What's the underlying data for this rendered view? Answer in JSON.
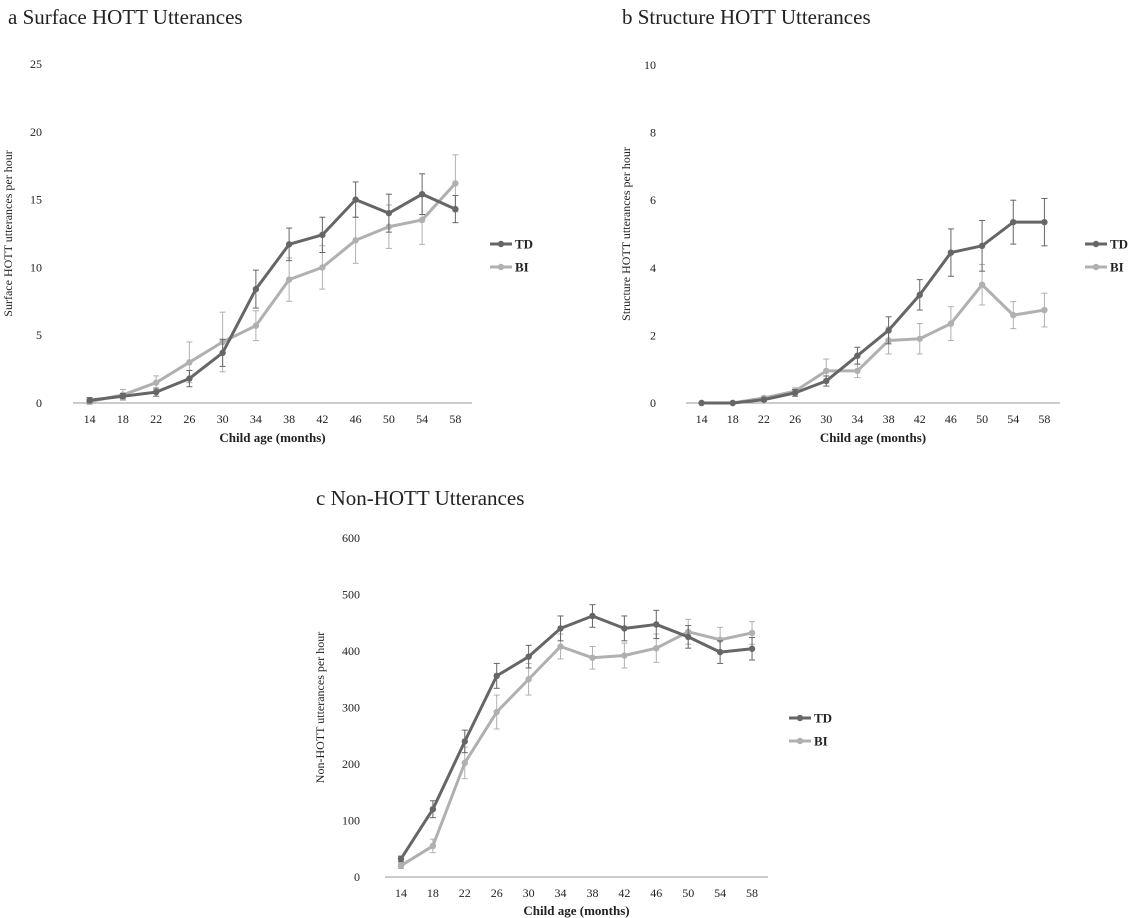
{
  "figure": {
    "panels": [
      {
        "title": "a Surface HOTT Utterances"
      },
      {
        "title": "b Structure HOTT Utterances"
      },
      {
        "title": "c Non-HOTT Utterances"
      }
    ]
  },
  "colors": {
    "TD": "#666666",
    "BI": "#b0b0b0",
    "axis": "#999999"
  },
  "chart_data": [
    {
      "type": "line",
      "title": "a Surface HOTT Utterances",
      "xlabel": "Child age (months)",
      "ylabel": "Surface  HOTT utterances per hour",
      "categories": [
        "14",
        "18",
        "22",
        "26",
        "30",
        "34",
        "38",
        "42",
        "46",
        "50",
        "54",
        "58"
      ],
      "ylim": [
        0,
        25
      ],
      "yticks": [
        "0",
        "5",
        "10",
        "15",
        "20",
        "25"
      ],
      "legend_position": "right",
      "series": [
        {
          "name": "TD",
          "values": [
            0.2,
            0.5,
            0.8,
            1.8,
            3.7,
            8.4,
            11.7,
            12.4,
            15.0,
            14.0,
            15.4,
            14.3
          ],
          "errors": [
            0.2,
            0.2,
            0.3,
            0.6,
            1.0,
            1.4,
            1.2,
            1.3,
            1.3,
            1.4,
            1.5,
            1.0
          ]
        },
        {
          "name": "BI",
          "values": [
            0.1,
            0.6,
            1.5,
            3.0,
            4.5,
            5.7,
            9.1,
            10.0,
            12.0,
            13.0,
            13.5,
            16.2
          ],
          "errors": [
            0.2,
            0.4,
            0.5,
            1.5,
            2.2,
            1.1,
            1.6,
            1.6,
            1.7,
            1.6,
            1.8,
            2.1
          ]
        }
      ]
    },
    {
      "type": "line",
      "title": "b Structure HOTT Utterances",
      "xlabel": "Child age (months)",
      "ylabel": "Structure HOTT utterances per hour",
      "categories": [
        "14",
        "18",
        "22",
        "26",
        "30",
        "34",
        "38",
        "42",
        "46",
        "50",
        "54",
        "58"
      ],
      "ylim": [
        0,
        10
      ],
      "yticks": [
        "0",
        "2",
        "4",
        "6",
        "8",
        "10"
      ],
      "legend_position": "right",
      "series": [
        {
          "name": "TD",
          "values": [
            0.0,
            0.0,
            0.1,
            0.3,
            0.65,
            1.4,
            2.15,
            3.2,
            4.45,
            4.65,
            5.35,
            5.35
          ],
          "errors": [
            0.02,
            0.03,
            0.05,
            0.1,
            0.15,
            0.25,
            0.4,
            0.45,
            0.7,
            0.75,
            0.65,
            0.7
          ]
        },
        {
          "name": "BI",
          "values": [
            0.0,
            0.0,
            0.15,
            0.35,
            0.95,
            0.95,
            1.85,
            1.9,
            2.35,
            3.5,
            2.6,
            2.75
          ],
          "errors": [
            0.02,
            0.03,
            0.05,
            0.1,
            0.35,
            0.2,
            0.4,
            0.45,
            0.5,
            0.6,
            0.4,
            0.5
          ]
        }
      ]
    },
    {
      "type": "line",
      "title": "c Non-HOTT Utterances",
      "xlabel": "Child age (months)",
      "ylabel": "Non-HOTT utterances per hour",
      "categories": [
        "14",
        "18",
        "22",
        "26",
        "30",
        "34",
        "38",
        "42",
        "46",
        "50",
        "54",
        "58"
      ],
      "ylim": [
        0,
        600
      ],
      "yticks": [
        "0",
        "100",
        "200",
        "300",
        "400",
        "500",
        "600"
      ],
      "legend_position": "right",
      "series": [
        {
          "name": "TD",
          "values": [
            32,
            120,
            240,
            356,
            390,
            440,
            462,
            440,
            447,
            425,
            398,
            404
          ],
          "errors": [
            5,
            15,
            20,
            22,
            20,
            22,
            20,
            22,
            25,
            20,
            20,
            20
          ]
        },
        {
          "name": "BI",
          "values": [
            20,
            55,
            202,
            292,
            350,
            408,
            388,
            392,
            405,
            434,
            420,
            432
          ],
          "errors": [
            5,
            12,
            28,
            30,
            28,
            22,
            20,
            22,
            25,
            22,
            22,
            20
          ]
        }
      ]
    }
  ]
}
